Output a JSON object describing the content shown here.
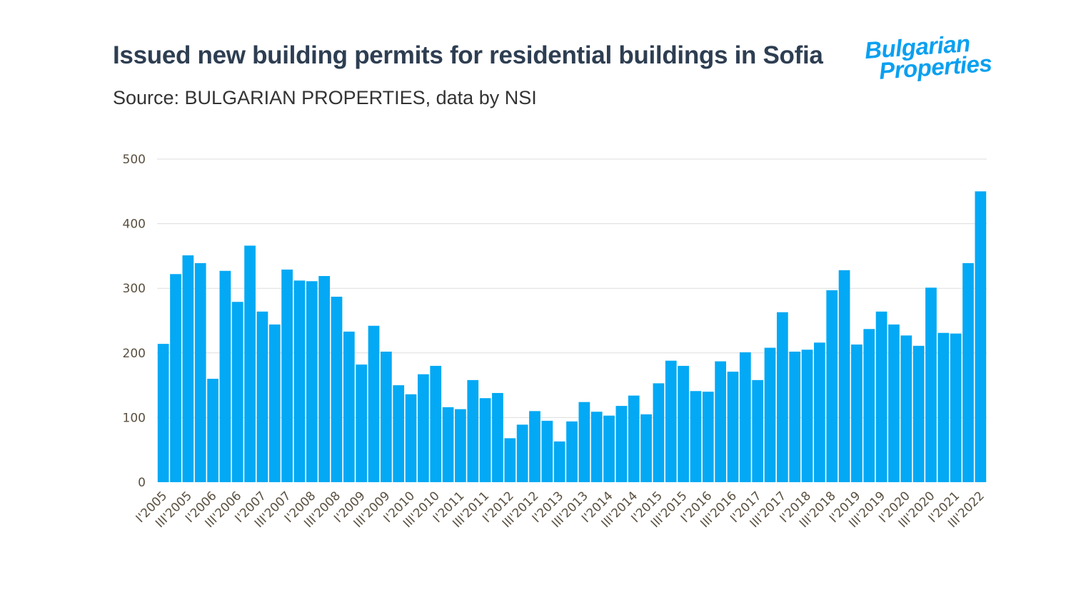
{
  "title": "Issued new building permits for residential buildings in Sofia",
  "subtitle": "Source: BULGARIAN PROPERTIES, data by NSI",
  "logo": {
    "line1": "Bulgarian",
    "line2": "Properties"
  },
  "colors": {
    "bar": "#03a9f4",
    "title": "#2e3e52",
    "grid": "#dddddd",
    "logo": "#0aa0f0"
  },
  "chart_data": {
    "type": "bar",
    "title": "Issued new building permits for residential buildings in Sofia",
    "xlabel": "",
    "ylabel": "",
    "ylim": [
      0,
      500
    ],
    "yticks": [
      0,
      100,
      200,
      300,
      400,
      500
    ],
    "grid": true,
    "x_tick_labels": [
      "I'2005",
      "III'2005",
      "I'2006",
      "III'2006",
      "I'2007",
      "III'2007",
      "I'2008",
      "III'2008",
      "I'2009",
      "III'2009",
      "I'2010",
      "III'2010",
      "I'2011",
      "III'2011",
      "I'2012",
      "III'2012",
      "I'2013",
      "III'2013",
      "I'2014",
      "III'2014",
      "I'2015",
      "III'2015",
      "I'2016",
      "III'2016",
      "I'2017",
      "III'2017",
      "I'2018",
      "III'2018",
      "I'2019",
      "III'2019",
      "I'2020",
      "III'2020",
      "I'2021",
      "III'2022"
    ],
    "values": [
      214,
      322,
      351,
      339,
      160,
      327,
      279,
      366,
      264,
      244,
      329,
      312,
      311,
      319,
      287,
      233,
      182,
      242,
      202,
      150,
      136,
      167,
      180,
      116,
      113,
      158,
      130,
      138,
      68,
      89,
      110,
      95,
      63,
      94,
      124,
      109,
      103,
      118,
      134,
      105,
      153,
      188,
      180,
      141,
      140,
      187,
      171,
      201,
      158,
      208,
      263,
      202,
      205,
      216,
      297,
      328,
      213,
      237,
      264,
      244,
      227,
      211,
      301,
      231,
      230,
      339,
      450
    ]
  }
}
